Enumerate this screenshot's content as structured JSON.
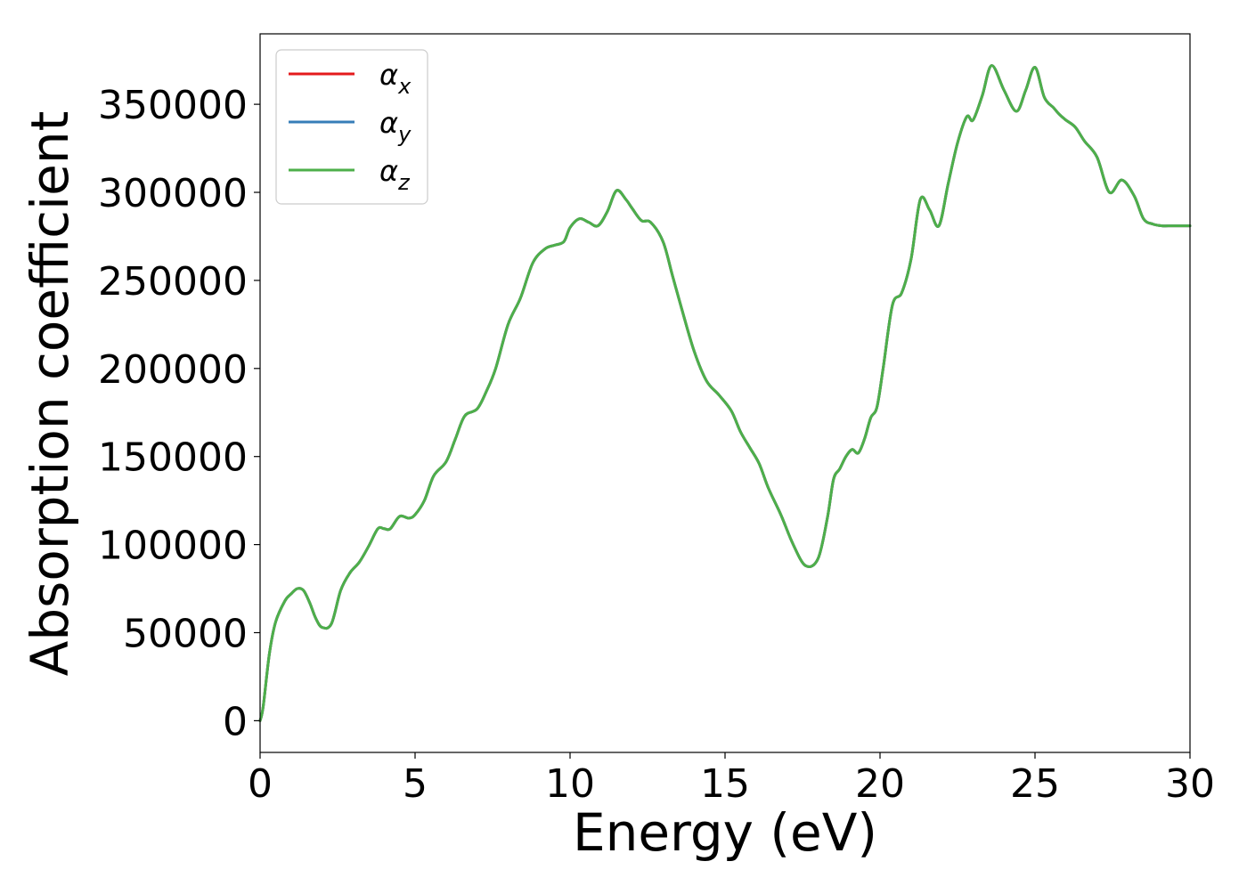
{
  "chart_data": {
    "type": "line",
    "xlabel": "Energy (eV)",
    "ylabel": "Absorption coefficient",
    "xlim": [
      0,
      30
    ],
    "ylim": [
      -18000,
      390000
    ],
    "xticks": [
      0,
      5,
      10,
      15,
      20,
      25,
      30
    ],
    "xtick_labels": [
      "0",
      "5",
      "10",
      "15",
      "20",
      "25",
      "30"
    ],
    "yticks": [
      0,
      50000,
      100000,
      150000,
      200000,
      250000,
      300000,
      350000
    ],
    "ytick_labels": [
      "0",
      "50000",
      "100000",
      "150000",
      "200000",
      "250000",
      "300000",
      "350000"
    ],
    "grid": false,
    "legend_position": "top-left",
    "legend": [
      {
        "symbol": "α",
        "subscript": "x",
        "color": "#e41a1c"
      },
      {
        "symbol": "α",
        "subscript": "y",
        "color": "#377eb8"
      },
      {
        "symbol": "α",
        "subscript": "z",
        "color": "#4daf4a"
      }
    ],
    "x": [
      0,
      0.1,
      0.3,
      0.5,
      0.8,
      1.0,
      1.2,
      1.4,
      1.6,
      1.8,
      2.0,
      2.3,
      2.6,
      2.9,
      3.2,
      3.5,
      3.8,
      4.0,
      4.2,
      4.5,
      4.8,
      5.0,
      5.3,
      5.6,
      6.0,
      6.3,
      6.6,
      7.0,
      7.3,
      7.6,
      8.0,
      8.4,
      8.8,
      9.2,
      9.5,
      9.8,
      10.0,
      10.3,
      10.6,
      10.9,
      11.2,
      11.5,
      11.8,
      12.0,
      12.3,
      12.6,
      13.0,
      13.3,
      13.6,
      14.0,
      14.4,
      14.8,
      15.2,
      15.5,
      15.8,
      16.1,
      16.4,
      16.8,
      17.2,
      17.6,
      18.0,
      18.3,
      18.5,
      18.7,
      18.9,
      19.1,
      19.3,
      19.5,
      19.7,
      19.9,
      20.1,
      20.4,
      20.7,
      21.0,
      21.3,
      21.6,
      21.9,
      22.2,
      22.5,
      22.8,
      23.0,
      23.3,
      23.6,
      24.0,
      24.4,
      24.7,
      25.0,
      25.3,
      25.6,
      25.8,
      26.0,
      26.3,
      26.6,
      27.0,
      27.4,
      27.8,
      28.2,
      28.5,
      28.8,
      29.1,
      29.4,
      29.7,
      30.0
    ],
    "series": [
      {
        "name": "α_x",
        "color": "#e41a1c",
        "values": [
          0,
          8000,
          38000,
          56000,
          68000,
          72000,
          75000,
          74000,
          67000,
          58000,
          53000,
          55000,
          74000,
          84000,
          90000,
          99000,
          109000,
          109000,
          109000,
          116000,
          115000,
          117000,
          125000,
          139000,
          147000,
          160000,
          173000,
          177000,
          187000,
          200000,
          225000,
          240000,
          260000,
          268000,
          270000,
          272000,
          280000,
          285000,
          283000,
          281000,
          289000,
          301000,
          296000,
          291000,
          284000,
          283000,
          272000,
          253000,
          234000,
          210000,
          193000,
          185000,
          176000,
          164000,
          155000,
          146000,
          132000,
          117000,
          100000,
          88000,
          92000,
          115000,
          137000,
          143000,
          150000,
          154000,
          152000,
          160000,
          172000,
          178000,
          200000,
          236000,
          243000,
          262000,
          296000,
          290000,
          281000,
          305000,
          328000,
          343000,
          341000,
          355000,
          372000,
          358000,
          346000,
          358000,
          371000,
          354000,
          348000,
          344000,
          341000,
          337000,
          329000,
          320000,
          300000,
          307000,
          298000,
          285000,
          282000,
          281000,
          281000,
          281000,
          281000
        ]
      },
      {
        "name": "α_y",
        "color": "#377eb8",
        "values": [
          0,
          8000,
          38000,
          56000,
          68000,
          72000,
          75000,
          74000,
          67000,
          58000,
          53000,
          55000,
          74000,
          84000,
          90000,
          99000,
          109000,
          109000,
          109000,
          116000,
          115000,
          117000,
          125000,
          139000,
          147000,
          160000,
          173000,
          177000,
          187000,
          200000,
          225000,
          240000,
          260000,
          268000,
          270000,
          272000,
          280000,
          285000,
          283000,
          281000,
          289000,
          301000,
          296000,
          291000,
          284000,
          283000,
          272000,
          253000,
          234000,
          210000,
          193000,
          185000,
          176000,
          164000,
          155000,
          146000,
          132000,
          117000,
          100000,
          88000,
          92000,
          115000,
          137000,
          143000,
          150000,
          154000,
          152000,
          160000,
          172000,
          178000,
          200000,
          236000,
          243000,
          262000,
          296000,
          290000,
          281000,
          305000,
          328000,
          343000,
          341000,
          355000,
          372000,
          358000,
          346000,
          358000,
          371000,
          354000,
          348000,
          344000,
          341000,
          337000,
          329000,
          320000,
          300000,
          307000,
          298000,
          285000,
          282000,
          281000,
          281000,
          281000,
          281000
        ]
      },
      {
        "name": "α_z",
        "color": "#4daf4a",
        "values": [
          0,
          8000,
          38000,
          56000,
          68000,
          72000,
          75000,
          74000,
          67000,
          58000,
          53000,
          55000,
          74000,
          84000,
          90000,
          99000,
          109000,
          109000,
          109000,
          116000,
          115000,
          117000,
          125000,
          139000,
          147000,
          160000,
          173000,
          177000,
          187000,
          200000,
          225000,
          240000,
          260000,
          268000,
          270000,
          272000,
          280000,
          285000,
          283000,
          281000,
          289000,
          301000,
          296000,
          291000,
          284000,
          283000,
          272000,
          253000,
          234000,
          210000,
          193000,
          185000,
          176000,
          164000,
          155000,
          146000,
          132000,
          117000,
          100000,
          88000,
          92000,
          115000,
          137000,
          143000,
          150000,
          154000,
          152000,
          160000,
          172000,
          178000,
          200000,
          236000,
          243000,
          262000,
          296000,
          290000,
          281000,
          305000,
          328000,
          343000,
          341000,
          355000,
          372000,
          358000,
          346000,
          358000,
          371000,
          354000,
          348000,
          344000,
          341000,
          337000,
          329000,
          320000,
          300000,
          307000,
          298000,
          285000,
          282000,
          281000,
          281000,
          281000,
          281000
        ]
      }
    ]
  }
}
